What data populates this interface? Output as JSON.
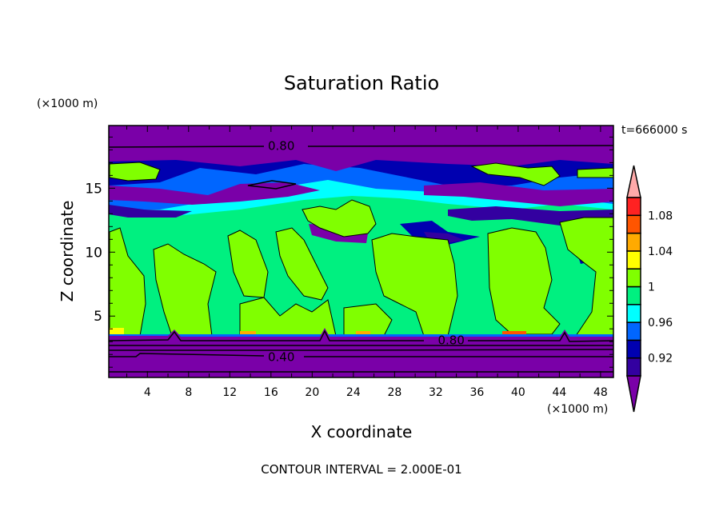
{
  "chart_data": {
    "type": "heatmap",
    "subtype": "filled-contour",
    "title": "Saturation Ratio",
    "xlabel": "X coordinate",
    "ylabel": "Z coordinate",
    "x_unit": "(×1000 m)",
    "y_unit": "(×1000 m)",
    "time_label": "t=666000 s",
    "footer": "CONTOUR INTERVAL = 2.000E-01",
    "xlim": [
      0.25,
      49.25
    ],
    "ylim": [
      0.2,
      19.9
    ],
    "x_ticks": [
      4,
      8,
      12,
      16,
      20,
      24,
      28,
      32,
      36,
      40,
      44,
      48
    ],
    "y_ticks": [
      5,
      10,
      15
    ],
    "contour_labels": [
      {
        "text": "0.80",
        "x": 17,
        "y": 18.3
      },
      {
        "text": "0.80",
        "x": 33.5,
        "y": 3.1
      },
      {
        "text": "0.40",
        "x": 17,
        "y": 1.8
      }
    ],
    "colorbar": {
      "levels": [
        0.9,
        0.92,
        0.94,
        0.96,
        0.98,
        1.0,
        1.02,
        1.04,
        1.06,
        1.08,
        1.1
      ],
      "tick_labels": [
        {
          "value": 0.92,
          "text": "0.92"
        },
        {
          "value": 0.96,
          "text": "0.96"
        },
        {
          "value": 1.0,
          "text": "1"
        },
        {
          "value": 1.04,
          "text": "1.04"
        },
        {
          "value": 1.08,
          "text": "1.08"
        }
      ],
      "colors": [
        "#3300a0",
        "#0000b0",
        "#0066ff",
        "#00ffff",
        "#00f080",
        "#80ff00",
        "#ffff00",
        "#ffaa00",
        "#ff5500",
        "#ff2222"
      ],
      "under_color": "#7a00a8",
      "over_color": "#ffaaaa"
    }
  }
}
